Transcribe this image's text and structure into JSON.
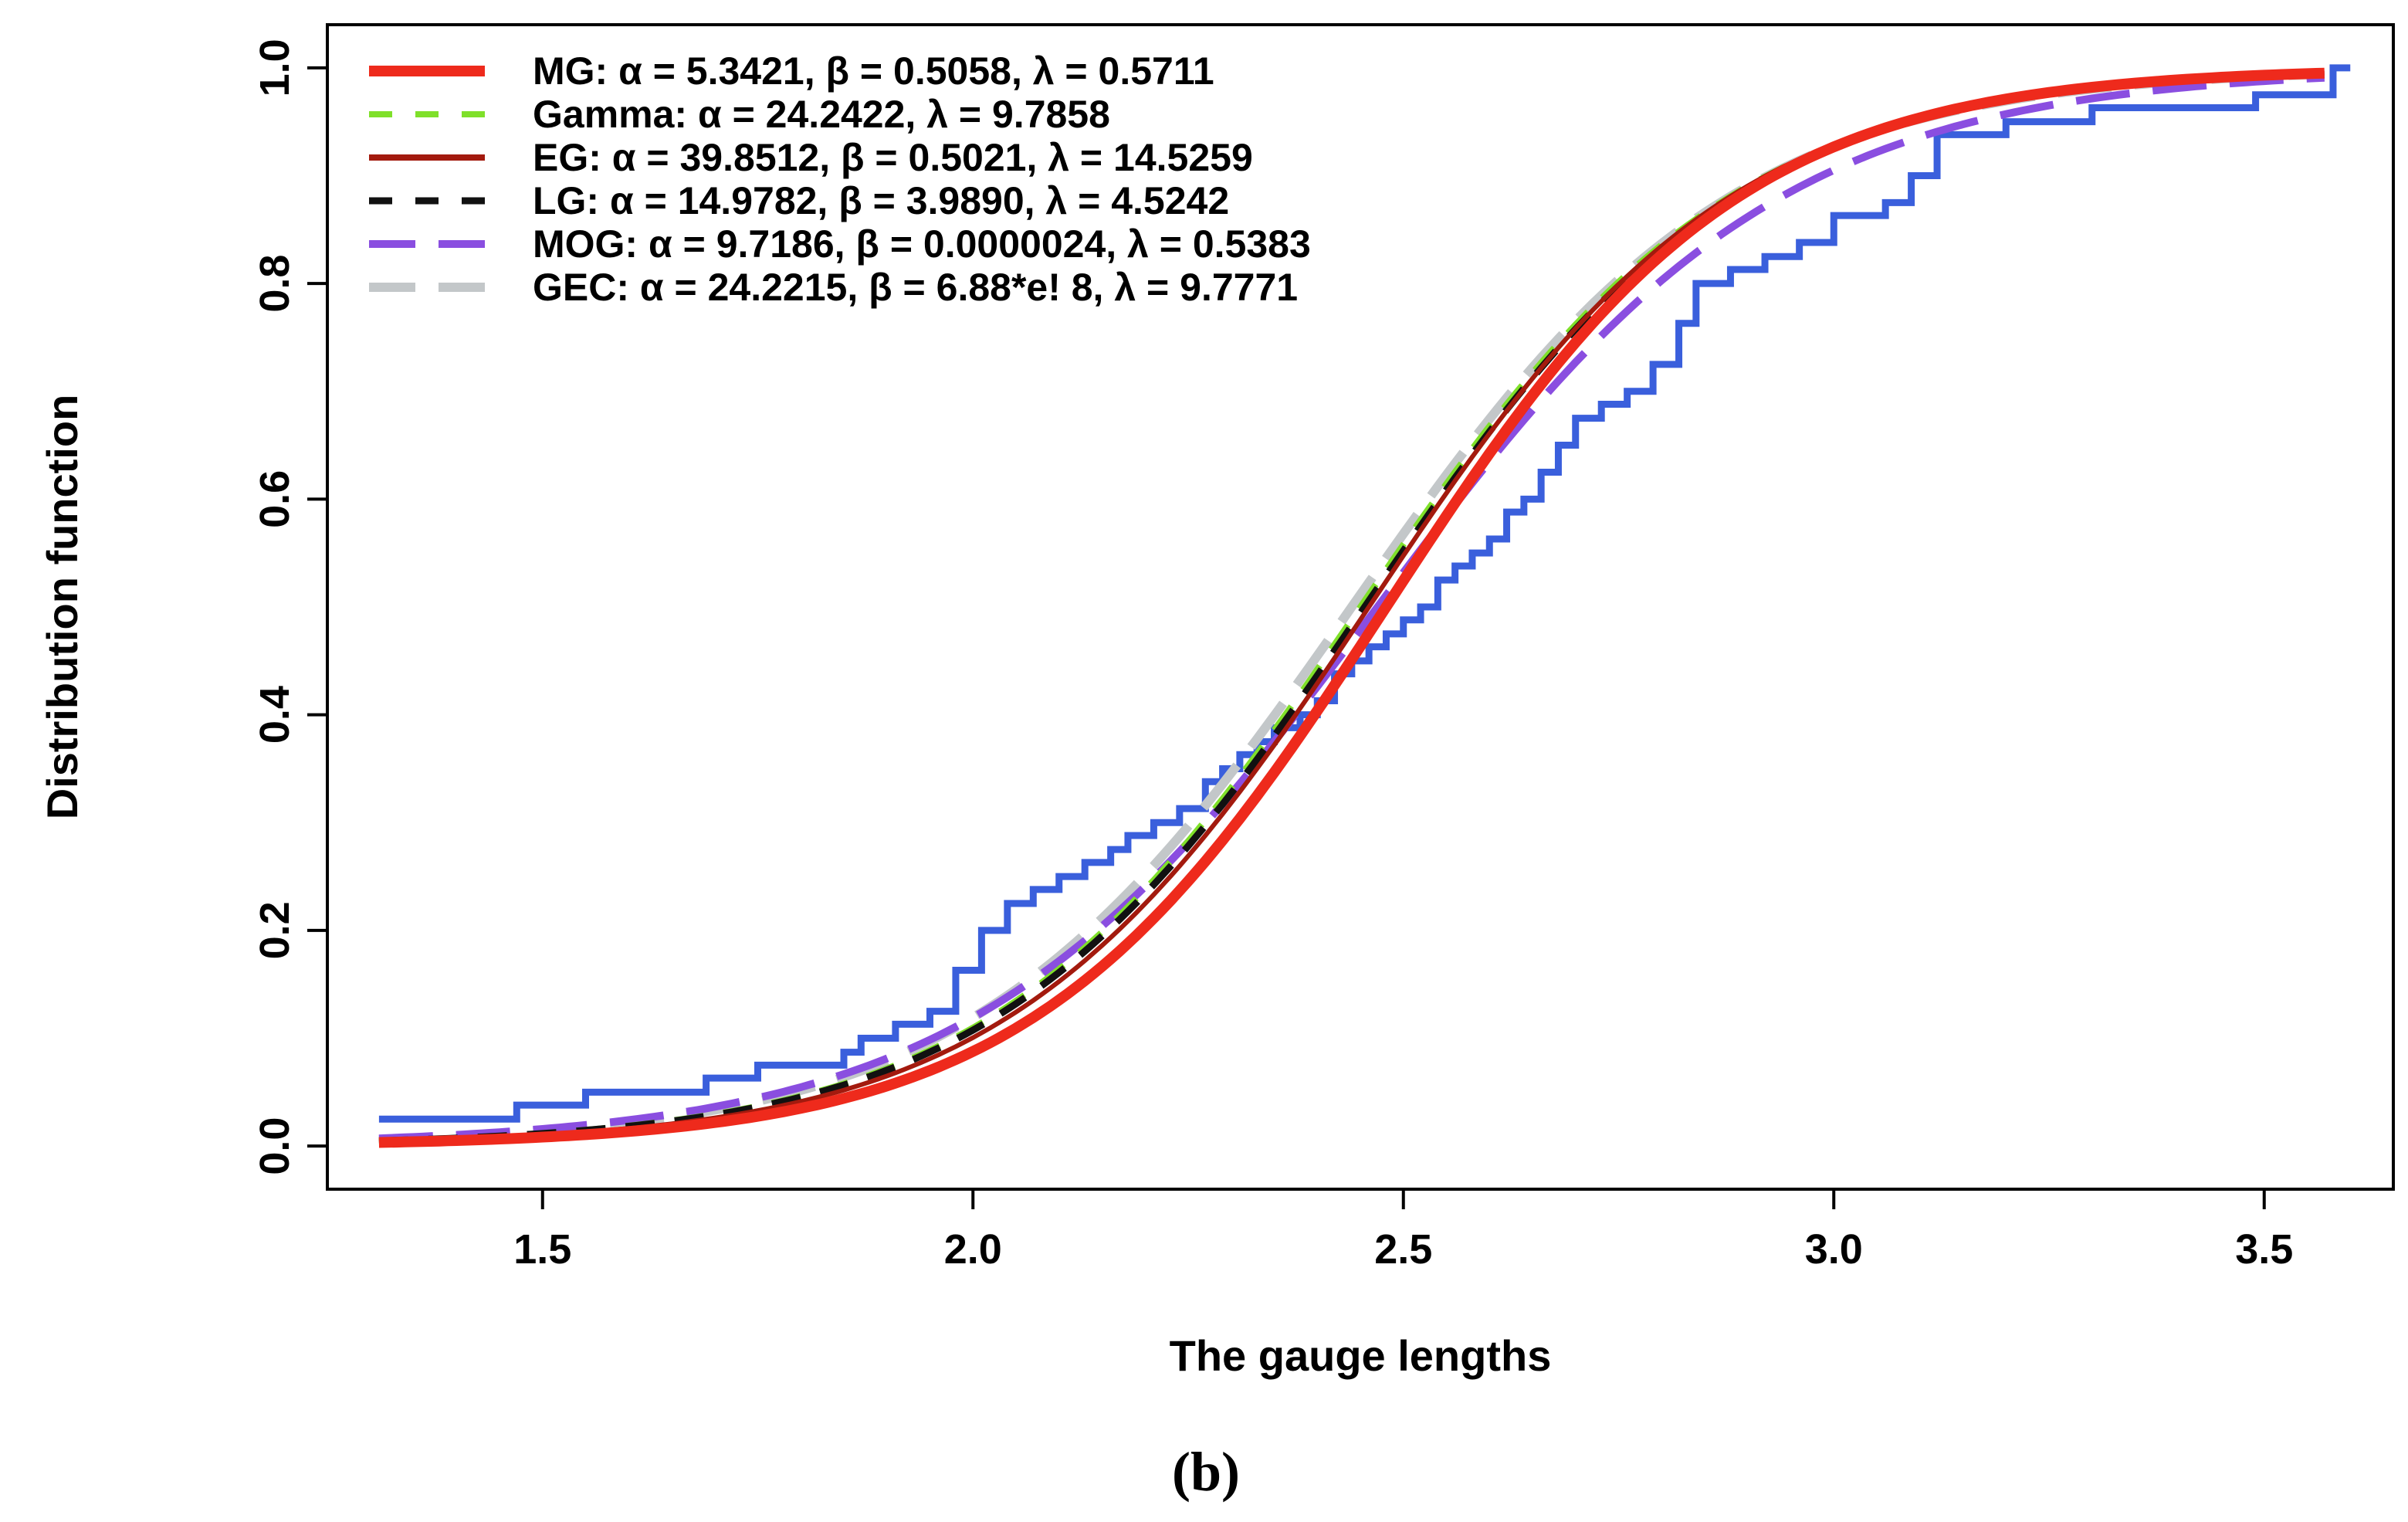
{
  "chart_data": {
    "type": "line",
    "title": "",
    "panel_label": "(b)",
    "xlabel": "The gauge lengths",
    "ylabel": "Distribution function",
    "xlim": [
      1.25,
      3.65
    ],
    "ylim": [
      -0.04,
      1.04
    ],
    "xticks": [
      1.5,
      2.0,
      2.5,
      3.0,
      3.5
    ],
    "xtick_labels": [
      "1.5",
      "2.0",
      "2.5",
      "3.0",
      "3.5"
    ],
    "yticks": [
      0.0,
      0.2,
      0.4,
      0.6,
      0.8,
      1.0
    ],
    "ytick_labels": [
      "0.0",
      "0.2",
      "0.4",
      "0.6",
      "0.8",
      "1.0"
    ],
    "legend_position": "top-left",
    "empirical": {
      "name": "Empirical CDF",
      "color": "#3a5fdc",
      "x": [
        1.31,
        1.47,
        1.55,
        1.69,
        1.75,
        1.79,
        1.82,
        1.85,
        1.87,
        1.91,
        1.95,
        1.98,
        2.01,
        2.04,
        2.07,
        2.1,
        2.13,
        2.16,
        2.18,
        2.21,
        2.24,
        2.27,
        2.29,
        2.31,
        2.33,
        2.35,
        2.38,
        2.4,
        2.42,
        2.44,
        2.46,
        2.48,
        2.5,
        2.52,
        2.54,
        2.56,
        2.58,
        2.6,
        2.62,
        2.64,
        2.66,
        2.68,
        2.7,
        2.73,
        2.76,
        2.79,
        2.82,
        2.84,
        2.88,
        2.92,
        2.96,
        3.0,
        3.06,
        3.09,
        3.12,
        3.2,
        3.3,
        3.4,
        3.49,
        3.58
      ],
      "y": [
        0.025,
        0.038,
        0.05,
        0.063,
        0.075,
        0.075,
        0.075,
        0.087,
        0.1,
        0.113,
        0.125,
        0.163,
        0.2,
        0.225,
        0.238,
        0.25,
        0.263,
        0.275,
        0.288,
        0.3,
        0.313,
        0.338,
        0.35,
        0.363,
        0.375,
        0.388,
        0.4,
        0.413,
        0.438,
        0.45,
        0.463,
        0.475,
        0.488,
        0.5,
        0.525,
        0.538,
        0.55,
        0.563,
        0.588,
        0.6,
        0.625,
        0.65,
        0.675,
        0.688,
        0.7,
        0.725,
        0.763,
        0.8,
        0.813,
        0.825,
        0.838,
        0.863,
        0.875,
        0.9,
        0.938,
        0.95,
        0.963,
        0.963,
        0.975,
        1.0
      ]
    },
    "series": [
      {
        "name": "MG",
        "legend_label": "MG: α = 5.3421, β = 0.5058, λ = 0.5711",
        "color": "#ee2a1c",
        "style": "solid",
        "width": 14,
        "mu": 2.48,
        "s": 0.205
      },
      {
        "name": "Gamma",
        "legend_label": "Gamma: α = 24.2422, λ = 9.7858",
        "color": "#7fe02a",
        "style": "dashed",
        "width": 8,
        "mu": 2.45,
        "s": 0.215
      },
      {
        "name": "EG",
        "legend_label": "EG: α = 39.8512, β = 0.5021, λ = 14.5259",
        "color": "#a31a0e",
        "style": "solid",
        "width": 6,
        "mu": 2.46,
        "s": 0.21
      },
      {
        "name": "LG",
        "legend_label": "LG: α = 14.9782, β = 3.9890, λ = 4.5242",
        "color": "#111111",
        "style": "dashed",
        "width": 9,
        "mu": 2.455,
        "s": 0.215
      },
      {
        "name": "MOG",
        "legend_label": "MOG: α = 9.7186, β = 0.0000024, λ = 0.5383",
        "color": "#8a4ee0",
        "style": "longdash",
        "width": 10,
        "mu": 2.47,
        "s": 0.235
      },
      {
        "name": "GEC",
        "legend_label": "GEC: α = 24.2215, β = 6.88*e! 8, λ = 9.7771",
        "color": "#c3c7c9",
        "style": "longdash",
        "width": 12,
        "mu": 2.44,
        "s": 0.22
      }
    ]
  }
}
